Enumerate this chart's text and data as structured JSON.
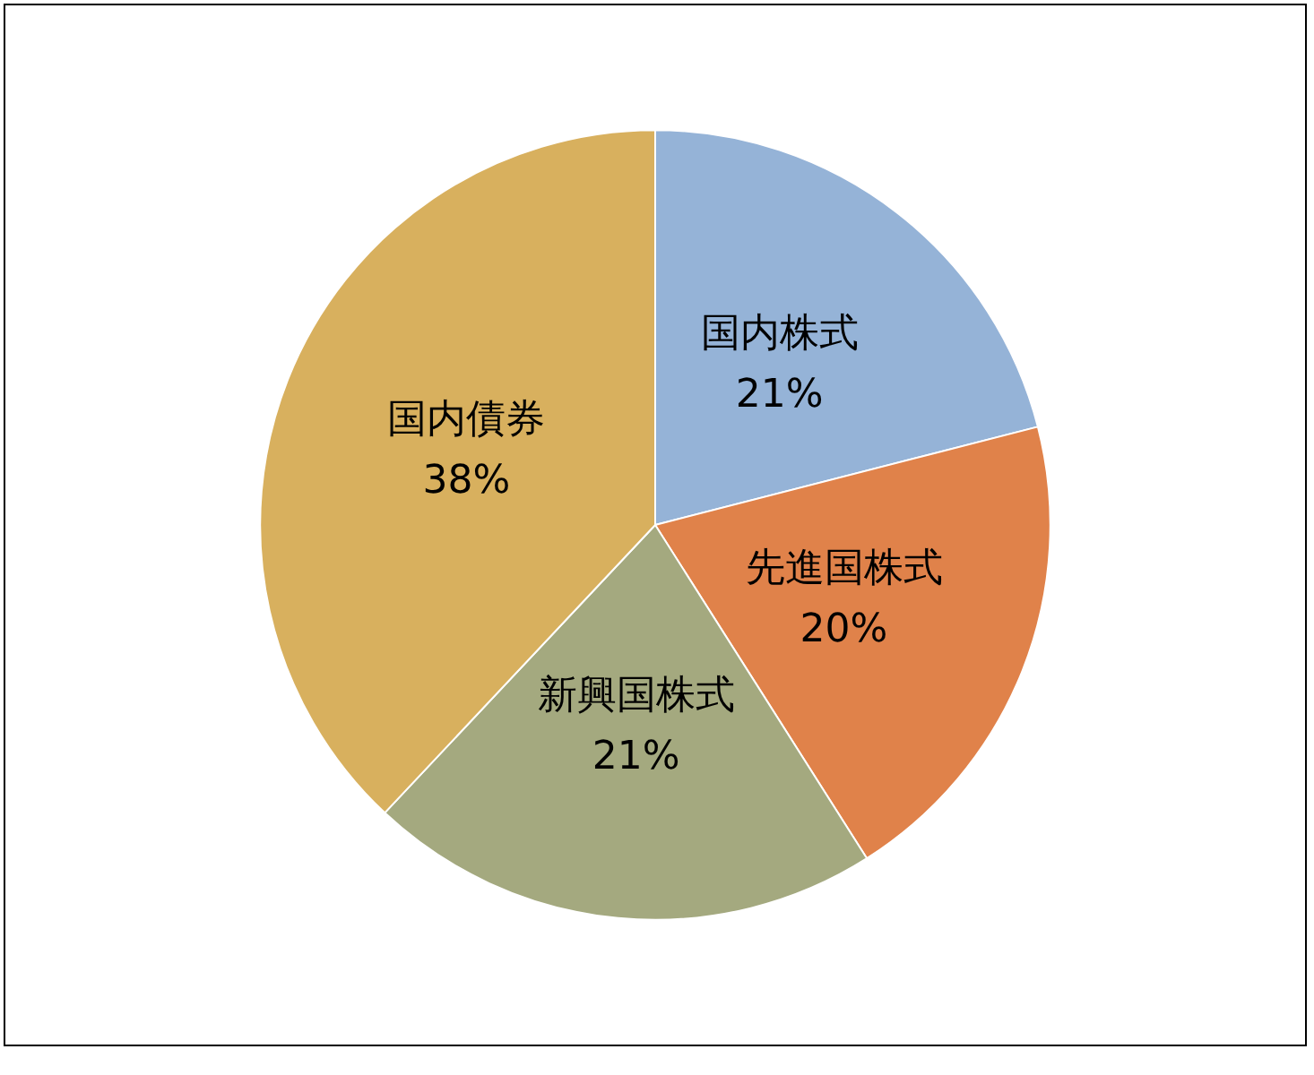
{
  "chart_data": {
    "type": "pie",
    "categories": [
      "国内株式",
      "先進国株式",
      "新興国株式",
      "国内債券"
    ],
    "values": [
      21,
      20,
      21,
      38
    ],
    "colors": [
      "#95b3d7",
      "#e0824a",
      "#a4a97f",
      "#d8b05e"
    ],
    "value_labels": [
      "21%",
      "20%",
      "21%",
      "38%"
    ],
    "legend": false
  }
}
